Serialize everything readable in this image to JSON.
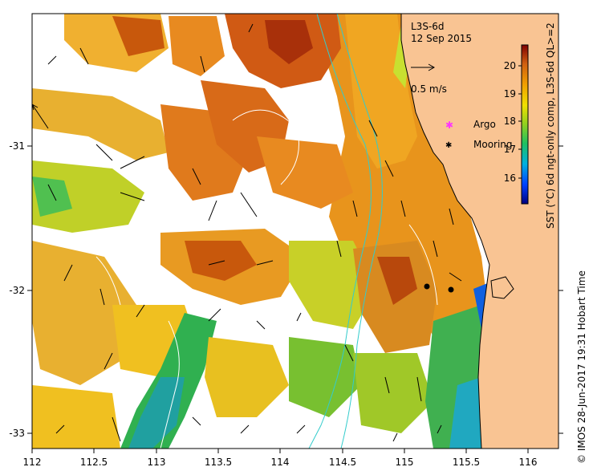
{
  "title": {
    "product": "L3S-6d",
    "date": "12 Sep 2015"
  },
  "scale_arrow": {
    "label": "0.5 m/s"
  },
  "legend": [
    {
      "key": "argo",
      "label": "Argo",
      "marker_color": "#ff33ff"
    },
    {
      "key": "mooring",
      "label": "Mooring",
      "marker_color": "#000000"
    }
  ],
  "x_axis": {
    "ticks": [
      "112",
      "112.5",
      "113",
      "113.5",
      "114",
      "114.5",
      "115",
      "115.5",
      "116"
    ],
    "range": [
      112,
      116.3
    ]
  },
  "y_axis": {
    "ticks": [
      "-31",
      "-32",
      "-33"
    ],
    "range": [
      -33.1,
      -30.1
    ]
  },
  "colorbar": {
    "label": "SST (°C) 6d ngt-only comp, L3S-6d QL>=2",
    "ticks": [
      "16",
      "17",
      "18",
      "19",
      "20"
    ],
    "range": [
      15.3,
      20.8
    ]
  },
  "credit": "© IMOS 28-Jun-2017 19:31 Hobart Time",
  "colors": {
    "land": "#f9c493",
    "coast": "#000000",
    "isobath": "#33cccc",
    "no_data": "#ffffff"
  },
  "moorings": [
    {
      "lon": 115.23,
      "lat": -31.98
    },
    {
      "lon": 115.4,
      "lat": -32.0
    }
  ]
}
